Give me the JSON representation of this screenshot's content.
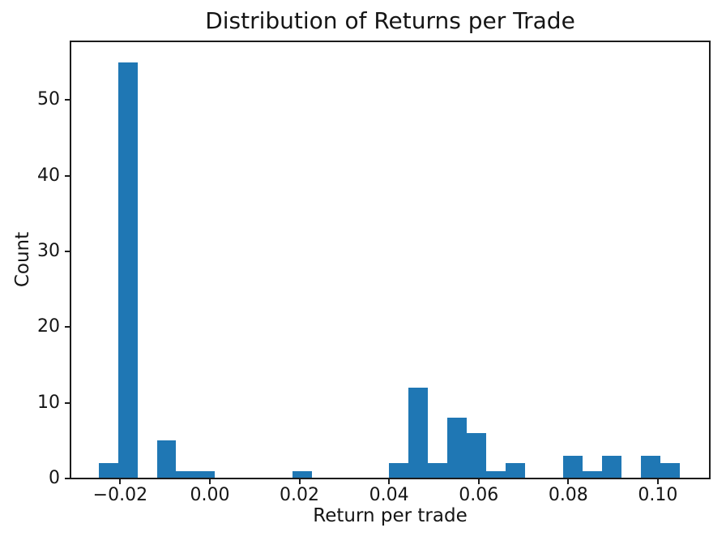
{
  "chart_data": {
    "type": "bar",
    "subtype": "histogram",
    "title": "Distribution of Returns per Trade",
    "xlabel": "Return per trade",
    "ylabel": "Count",
    "bar_color": "#1f77b4",
    "background_color": "#ffffff",
    "grid": false,
    "legend": null,
    "bin_start": -0.0248,
    "bin_width": 0.004322,
    "bin_counts": [
      2,
      55,
      0,
      5,
      1,
      1,
      0,
      0,
      0,
      0,
      1,
      0,
      0,
      0,
      0,
      2,
      12,
      2,
      8,
      6,
      1,
      2,
      0,
      0,
      3,
      1,
      3,
      0,
      3,
      2
    ],
    "total_count": 110,
    "xlim": [
      -0.0311,
      0.1115
    ],
    "ylim": [
      0,
      57.75
    ],
    "x_ticks": [
      {
        "value": -0.02,
        "label": "−0.02"
      },
      {
        "value": 0.0,
        "label": "0.00"
      },
      {
        "value": 0.02,
        "label": "0.02"
      },
      {
        "value": 0.04,
        "label": "0.04"
      },
      {
        "value": 0.06,
        "label": "0.06"
      },
      {
        "value": 0.08,
        "label": "0.08"
      },
      {
        "value": 0.1,
        "label": "0.10"
      }
    ],
    "y_ticks": [
      {
        "value": 0,
        "label": "0"
      },
      {
        "value": 10,
        "label": "10"
      },
      {
        "value": 20,
        "label": "20"
      },
      {
        "value": 30,
        "label": "30"
      },
      {
        "value": 40,
        "label": "40"
      },
      {
        "value": 50,
        "label": "50"
      }
    ]
  }
}
